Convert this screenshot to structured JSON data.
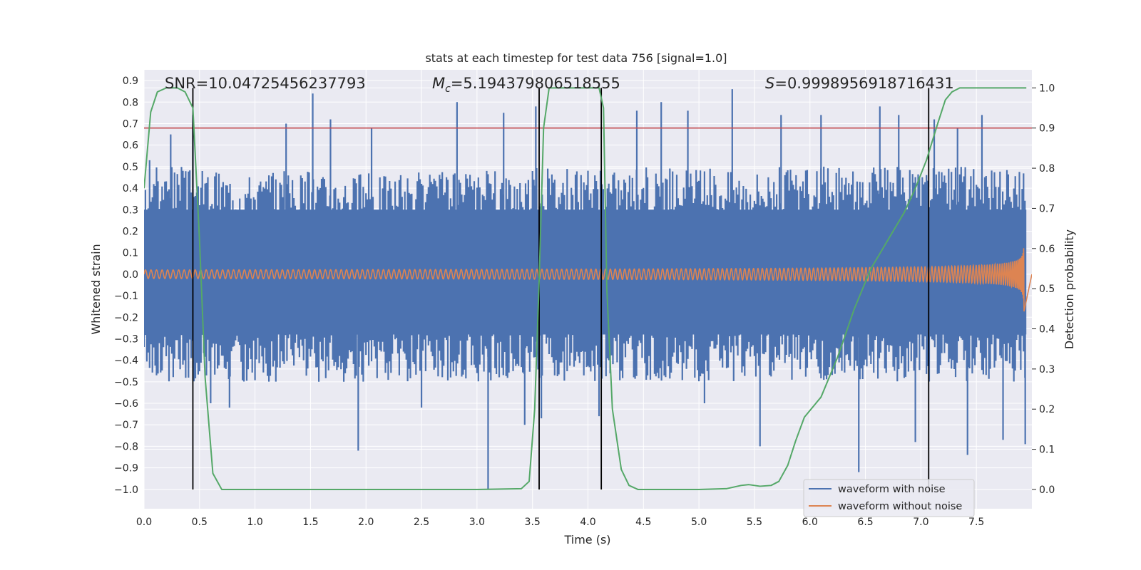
{
  "chart_data": {
    "type": "line",
    "title": "stats at each timestep for test data 756 [signal=1.0]",
    "xlabel": "Time (s)",
    "ylabel": "Whitened strain",
    "y2label": "Detection probability",
    "xlim": [
      0.0,
      8.0
    ],
    "ylim": [
      -1.09,
      0.95
    ],
    "y2lim": [
      -0.048,
      1.045
    ],
    "xticks": [
      "0.0",
      "0.5",
      "1.0",
      "1.5",
      "2.0",
      "2.5",
      "3.0",
      "3.5",
      "4.0",
      "4.5",
      "5.0",
      "5.5",
      "6.0",
      "6.5",
      "7.0",
      "7.5"
    ],
    "yticks": [
      "0.9",
      "0.8",
      "0.7",
      "0.6",
      "0.5",
      "0.4",
      "0.3",
      "0.2",
      "0.1",
      "0.0",
      "−0.1",
      "−0.2",
      "−0.3",
      "−0.4",
      "−0.5",
      "−0.6",
      "−0.7",
      "−0.8",
      "−0.9",
      "−1.0"
    ],
    "y2ticks": [
      "1.0",
      "0.9",
      "0.8",
      "0.7",
      "0.6",
      "0.5",
      "0.4",
      "0.3",
      "0.2",
      "0.1",
      "0.0"
    ],
    "grid": true,
    "legend_position": "lower-right",
    "annotations": {
      "snr": "SNR=10.04725456237793",
      "mc_symbol": "M",
      "mc_sub": "c",
      "mc_value": "=5.194379806518555",
      "s_symbol": "S",
      "s_value": "=0.9998956918716431"
    },
    "threshold": {
      "axis": "right",
      "value": 0.9,
      "color": "#c44e52"
    },
    "vertical_markers_x": [
      0.44,
      3.56,
      4.12,
      7.07
    ],
    "noise_envelope": {
      "x": [
        0.0,
        0.05,
        0.1,
        0.2,
        0.3,
        0.4,
        0.5,
        1.0,
        1.5,
        2.0,
        2.5,
        3.0,
        3.5,
        4.0,
        4.5,
        5.0,
        5.5,
        6.0,
        6.5,
        7.0,
        7.5,
        8.0
      ],
      "upper": [
        0.38,
        0.45,
        0.5,
        0.5,
        0.5,
        0.5,
        0.5,
        0.48,
        0.48,
        0.48,
        0.48,
        0.48,
        0.5,
        0.5,
        0.5,
        0.5,
        0.5,
        0.5,
        0.5,
        0.5,
        0.5,
        0.48
      ],
      "lower": [
        -0.4,
        -0.45,
        -0.5,
        -0.5,
        -0.5,
        -0.5,
        -0.5,
        -0.5,
        -0.5,
        -0.5,
        -0.5,
        -0.5,
        -0.5,
        -0.5,
        -0.5,
        -0.5,
        -0.5,
        -0.5,
        -0.5,
        -0.5,
        -0.5,
        -0.5
      ],
      "spike_tips": [
        [
          0.05,
          0.53
        ],
        [
          0.24,
          0.65
        ],
        [
          0.44,
          0.74
        ],
        [
          0.6,
          -0.6
        ],
        [
          0.77,
          -0.62
        ],
        [
          1.28,
          0.7
        ],
        [
          1.52,
          0.84
        ],
        [
          1.68,
          0.72
        ],
        [
          1.93,
          -0.82
        ],
        [
          2.05,
          0.68
        ],
        [
          2.5,
          -0.62
        ],
        [
          2.82,
          0.8
        ],
        [
          3.1,
          -1.0
        ],
        [
          3.24,
          0.75
        ],
        [
          3.43,
          -0.7
        ],
        [
          3.53,
          0.78
        ],
        [
          3.58,
          -0.67
        ],
        [
          4.1,
          -0.66
        ],
        [
          4.44,
          0.76
        ],
        [
          4.66,
          0.8
        ],
        [
          4.9,
          0.76
        ],
        [
          5.05,
          -0.6
        ],
        [
          5.3,
          0.86
        ],
        [
          5.55,
          -0.8
        ],
        [
          5.74,
          0.74
        ],
        [
          6.1,
          0.74
        ],
        [
          6.44,
          -0.92
        ],
        [
          6.63,
          0.78
        ],
        [
          6.8,
          0.74
        ],
        [
          6.95,
          -0.78
        ],
        [
          7.12,
          0.72
        ],
        [
          7.33,
          0.68
        ],
        [
          7.42,
          -0.84
        ],
        [
          7.55,
          0.74
        ],
        [
          7.74,
          -0.77
        ],
        [
          7.94,
          -0.79
        ]
      ]
    },
    "series": [
      {
        "name": "waveform with noise",
        "color": "#4c72b0",
        "kind": "noise"
      },
      {
        "name": "waveform without noise",
        "color": "#dd8452",
        "kind": "chirp",
        "x_end": 7.93,
        "amplitude_start": 0.02,
        "amplitude_peak": 0.28
      },
      {
        "name": "detection probability",
        "color": "#55a868",
        "axis": "right",
        "x": [
          0.0,
          0.06,
          0.12,
          0.2,
          0.3,
          0.37,
          0.44,
          0.5,
          0.55,
          0.62,
          0.7,
          1.0,
          2.0,
          3.0,
          3.4,
          3.47,
          3.52,
          3.56,
          3.6,
          3.65,
          3.7,
          4.0,
          4.1,
          4.14,
          4.17,
          4.22,
          4.3,
          4.37,
          4.45,
          4.6,
          5.0,
          5.25,
          5.38,
          5.45,
          5.55,
          5.65,
          5.72,
          5.8,
          5.87,
          5.95,
          6.1,
          6.25,
          6.4,
          6.55,
          6.7,
          6.85,
          6.95,
          7.05,
          7.15,
          7.22,
          7.28,
          7.35,
          7.95
        ],
        "y": [
          0.75,
          0.94,
          0.99,
          1.0,
          1.0,
          0.99,
          0.95,
          0.62,
          0.28,
          0.04,
          0.0,
          0.0,
          0.0,
          0.0,
          0.002,
          0.02,
          0.2,
          0.52,
          0.9,
          1.0,
          1.0,
          1.0,
          1.0,
          0.95,
          0.5,
          0.2,
          0.05,
          0.01,
          0.0,
          0.0,
          0.0,
          0.002,
          0.01,
          0.012,
          0.008,
          0.01,
          0.02,
          0.06,
          0.12,
          0.18,
          0.23,
          0.33,
          0.45,
          0.55,
          0.62,
          0.69,
          0.75,
          0.82,
          0.91,
          0.97,
          0.99,
          1.0,
          1.0
        ]
      }
    ]
  }
}
